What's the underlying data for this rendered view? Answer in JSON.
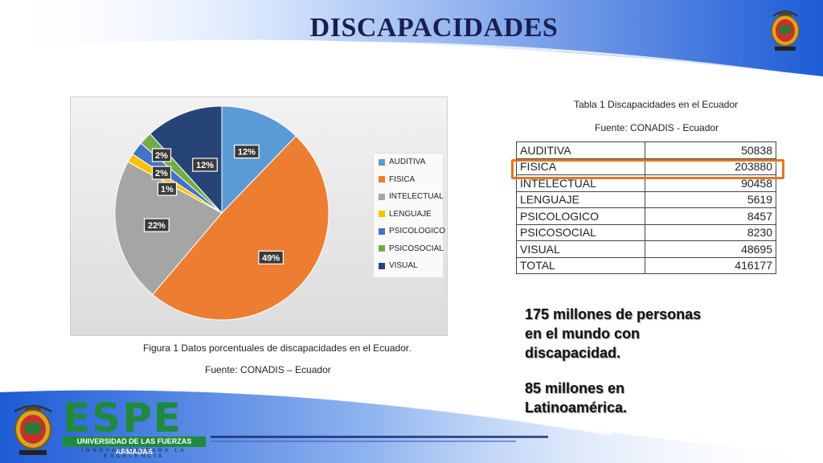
{
  "slide": {
    "title": "DISCAPACIDADES",
    "figure_caption": "Figura 1 Datos porcentuales de discapacidades en el Ecuador.",
    "figure_source": "Fuente: CONADIS – Ecuador",
    "table_caption": "Tabla 1 Discapacidades en el Ecuador",
    "table_source": "Fuente: CONADIS - Ecuador",
    "fact_1": [
      "175 millones de personas",
      "en el mundo con",
      "discapacidad."
    ],
    "fact_2": [
      "85 millones en",
      "Latinoamérica."
    ]
  },
  "logo": {
    "name": "ESPE",
    "university": "UNIVERSIDAD DE LAS FUERZAS ARMADAS",
    "motto": "INNOVACIÓN PARA LA EXCELENCIA"
  },
  "colors": {
    "title": "#1a1f4f",
    "highlight": "#e2781f",
    "brand_green": "#1f8a3c",
    "swoosh_blue": "#1d5bd6"
  },
  "chart_data": {
    "type": "pie",
    "legend_position": "right",
    "categories": [
      "AUDITIVA",
      "FISICA",
      "INTELECTUAL",
      "LENGUAJE",
      "PSICOLOGICO",
      "PSICOSOCIAL",
      "VISUAL"
    ],
    "values": [
      50838,
      203880,
      90458,
      5619,
      8457,
      8230,
      48695
    ],
    "percent_labels": [
      "12%",
      "49%",
      "22%",
      "1%",
      "2%",
      "2%",
      "12%"
    ],
    "colors": [
      "#5b9bd5",
      "#ed7d31",
      "#a5a5a5",
      "#ffc000",
      "#4472c4",
      "#70ad47",
      "#264478"
    ]
  },
  "table": {
    "rows": [
      {
        "label": "AUDITIVA",
        "value": "50838"
      },
      {
        "label": "FISICA",
        "value": "203880"
      },
      {
        "label": "INTELECTUAL",
        "value": "90458"
      },
      {
        "label": "LENGUAJE",
        "value": "5619"
      },
      {
        "label": "PSICOLOGICO",
        "value": "8457"
      },
      {
        "label": "PSICOSOCIAL",
        "value": "8230"
      },
      {
        "label": "VISUAL",
        "value": "48695"
      },
      {
        "label": "TOTAL",
        "value": "416177"
      }
    ],
    "highlighted_row": "FISICA"
  }
}
